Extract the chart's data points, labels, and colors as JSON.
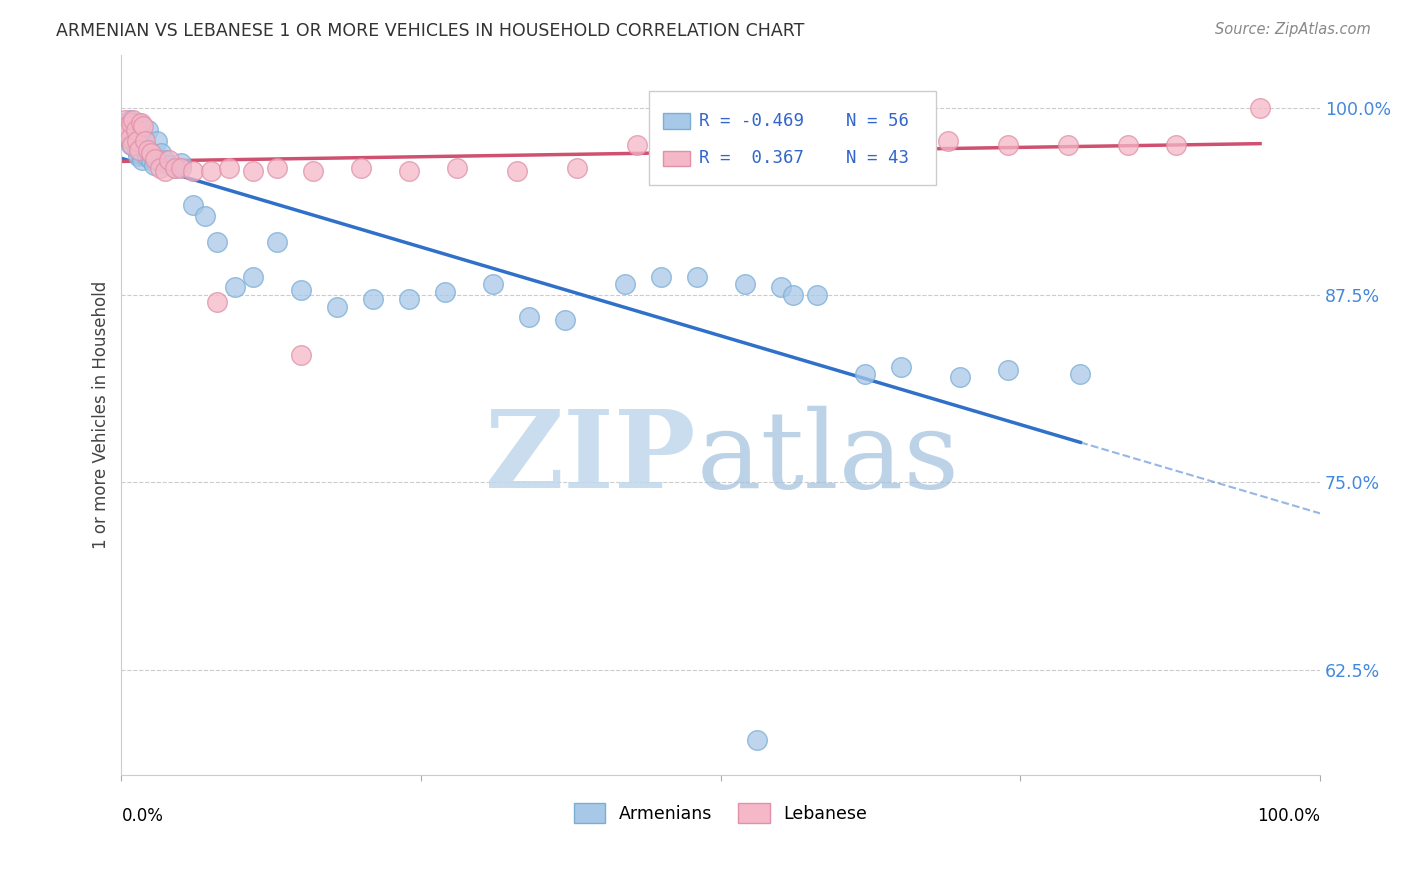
{
  "title": "ARMENIAN VS LEBANESE 1 OR MORE VEHICLES IN HOUSEHOLD CORRELATION CHART",
  "source": "Source: ZipAtlas.com",
  "ylabel": "1 or more Vehicles in Household",
  "xlim": [
    0.0,
    1.0
  ],
  "ylim": [
    0.555,
    1.035
  ],
  "yticks": [
    0.625,
    0.75,
    0.875,
    1.0
  ],
  "ytick_labels": [
    "62.5%",
    "75.0%",
    "87.5%",
    "100.0%"
  ],
  "legend_r_armenian": "-0.469",
  "legend_n_armenian": "56",
  "legend_r_lebanese": "0.367",
  "legend_n_lebanese": "43",
  "armenian_fill": "#A8C8E8",
  "armenian_edge": "#7aaed4",
  "lebanese_fill": "#F4B8C8",
  "lebanese_edge": "#e090a8",
  "armenian_line_color": "#3070C8",
  "lebanese_line_color": "#D05070",
  "title_color": "#333333",
  "source_color": "#888888",
  "ylabel_color": "#444444",
  "ytick_color": "#4488DD",
  "grid_color": "#CCCCCC",
  "watermark_zip_color": "#C0D8EC",
  "watermark_atlas_color": "#A0C0DC",
  "armenian_x": [
    0.003,
    0.004,
    0.005,
    0.006,
    0.007,
    0.008,
    0.009,
    0.01,
    0.011,
    0.012,
    0.013,
    0.014,
    0.015,
    0.016,
    0.017,
    0.018,
    0.019,
    0.02,
    0.021,
    0.022,
    0.023,
    0.025,
    0.027,
    0.03,
    0.033,
    0.036,
    0.04,
    0.045,
    0.05,
    0.06,
    0.07,
    0.08,
    0.095,
    0.11,
    0.13,
    0.15,
    0.18,
    0.21,
    0.24,
    0.27,
    0.31,
    0.34,
    0.37,
    0.42,
    0.45,
    0.48,
    0.52,
    0.55,
    0.56,
    0.58,
    0.62,
    0.65,
    0.7,
    0.74,
    0.8,
    0.53
  ],
  "armenian_y": [
    0.99,
    0.985,
    0.98,
    0.985,
    0.992,
    0.975,
    0.99,
    0.978,
    0.982,
    0.975,
    0.972,
    0.968,
    0.99,
    0.97,
    0.965,
    0.978,
    0.98,
    0.972,
    0.968,
    0.985,
    0.97,
    0.965,
    0.962,
    0.978,
    0.97,
    0.965,
    0.962,
    0.96,
    0.963,
    0.935,
    0.928,
    0.91,
    0.88,
    0.887,
    0.91,
    0.878,
    0.867,
    0.872,
    0.872,
    0.877,
    0.882,
    0.86,
    0.858,
    0.882,
    0.887,
    0.887,
    0.882,
    0.88,
    0.875,
    0.875,
    0.822,
    0.827,
    0.82,
    0.825,
    0.822,
    0.578
  ],
  "lebanese_x": [
    0.003,
    0.005,
    0.006,
    0.007,
    0.008,
    0.009,
    0.01,
    0.012,
    0.013,
    0.015,
    0.016,
    0.018,
    0.02,
    0.022,
    0.025,
    0.028,
    0.032,
    0.036,
    0.04,
    0.045,
    0.05,
    0.06,
    0.075,
    0.09,
    0.11,
    0.13,
    0.16,
    0.2,
    0.24,
    0.28,
    0.33,
    0.38,
    0.43,
    0.48,
    0.54,
    0.59,
    0.64,
    0.69,
    0.74,
    0.79,
    0.84,
    0.88,
    0.95
  ],
  "lebanese_y": [
    0.992,
    0.988,
    0.985,
    0.98,
    0.99,
    0.975,
    0.992,
    0.985,
    0.978,
    0.972,
    0.99,
    0.988,
    0.978,
    0.972,
    0.97,
    0.966,
    0.96,
    0.958,
    0.965,
    0.96,
    0.96,
    0.958,
    0.958,
    0.96,
    0.958,
    0.96,
    0.958,
    0.96,
    0.958,
    0.96,
    0.958,
    0.96,
    0.975,
    0.975,
    0.975,
    0.975,
    0.978,
    0.978,
    0.975,
    0.975,
    0.975,
    0.975,
    1.0
  ]
}
